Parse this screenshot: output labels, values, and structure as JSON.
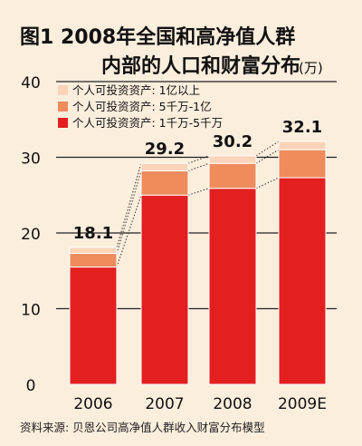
{
  "chart_data": {
    "type": "bar",
    "stacked": true,
    "title_line1": "图1  2008年全国和高净值人群",
    "title_line2": "内部的人口和财富分布",
    "title_suffix": "(万)",
    "source": "资料来源:  贝恩公司高净值人群收入财富分布模型",
    "categories": [
      "2006",
      "2007",
      "2008",
      "2009E"
    ],
    "totals": [
      "18.1",
      "29.2",
      "30.2",
      "32.1"
    ],
    "ylim": [
      0,
      40
    ],
    "yticks": [
      0,
      10,
      20,
      30,
      40
    ],
    "grid": true,
    "legend_position": "top-left",
    "series": [
      {
        "name": "个人可投资资产:  1千万-5千万",
        "color": "#e41f1f",
        "values": [
          15.5,
          25.0,
          25.9,
          27.3
        ]
      },
      {
        "name": "个人可投资资产:  5千万-1亿",
        "color": "#ee8c5c",
        "values": [
          1.8,
          3.2,
          3.3,
          3.7
        ]
      },
      {
        "name": "个人可投资资产:  1亿以上",
        "color": "#fad3b9",
        "values": [
          0.8,
          1.0,
          1.0,
          1.1
        ]
      }
    ]
  }
}
